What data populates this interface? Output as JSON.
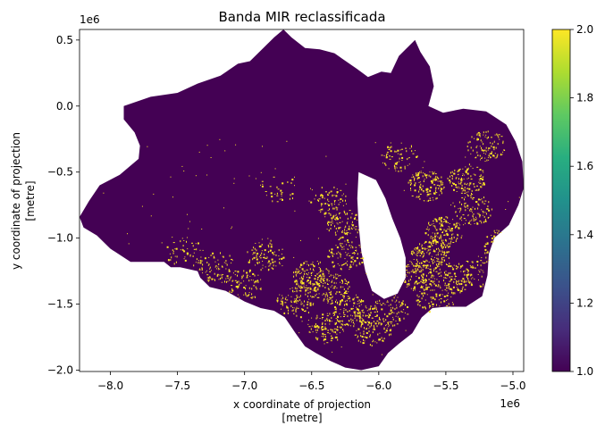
{
  "chart_data": {
    "type": "heatmap",
    "title": "Banda MIR reclassificada",
    "xlabel_line1": "x coordinate of projection",
    "xlabel_line2": "[metre]",
    "ylabel_line1": "y coordinate of projection",
    "ylabel_line2": "[metre]",
    "x_offset_label": "1e6",
    "y_offset_label": "1e6",
    "xlim": [
      -8.23,
      -4.92
    ],
    "ylim": [
      -2.01,
      0.58
    ],
    "xticks": [
      -8.0,
      -7.5,
      -7.0,
      -6.5,
      -6.0,
      -5.5,
      -5.0
    ],
    "xtick_labels": [
      "−8.0",
      "−7.5",
      "−7.0",
      "−6.5",
      "−6.0",
      "−5.5",
      "−5.0"
    ],
    "yticks": [
      0.5,
      0.0,
      -0.5,
      -1.0,
      -1.5,
      -2.0
    ],
    "ytick_labels": [
      "0.5",
      "0.0",
      "−0.5",
      "−1.0",
      "−1.5",
      "−2.0"
    ],
    "colorbar": {
      "min": 1.0,
      "max": 2.0,
      "ticks": [
        1.0,
        1.2,
        1.4,
        1.6,
        1.8,
        2.0
      ],
      "tick_labels": [
        "1.0",
        "1.2",
        "1.4",
        "1.6",
        "1.8",
        "2.0"
      ],
      "colormap": "viridis"
    },
    "classes": [
      {
        "value": 1,
        "color": "#440154"
      },
      {
        "value": 2,
        "color": "#fde725"
      }
    ],
    "region_outline": [
      [
        -8.23,
        -0.84
      ],
      [
        -8.16,
        -0.72
      ],
      [
        -8.08,
        -0.6
      ],
      [
        -7.93,
        -0.52
      ],
      [
        -7.86,
        -0.46
      ],
      [
        -7.79,
        -0.4
      ],
      [
        -7.78,
        -0.3
      ],
      [
        -7.82,
        -0.2
      ],
      [
        -7.9,
        -0.1
      ],
      [
        -7.9,
        0.0
      ],
      [
        -7.7,
        0.07
      ],
      [
        -7.5,
        0.1
      ],
      [
        -7.35,
        0.17
      ],
      [
        -7.18,
        0.23
      ],
      [
        -7.05,
        0.32
      ],
      [
        -6.96,
        0.34
      ],
      [
        -6.85,
        0.45
      ],
      [
        -6.78,
        0.52
      ],
      [
        -6.71,
        0.58
      ],
      [
        -6.65,
        0.52
      ],
      [
        -6.55,
        0.44
      ],
      [
        -6.44,
        0.43
      ],
      [
        -6.33,
        0.4
      ],
      [
        -6.26,
        0.35
      ],
      [
        -6.16,
        0.28
      ],
      [
        -6.08,
        0.22
      ],
      [
        -5.98,
        0.26
      ],
      [
        -5.91,
        0.25
      ],
      [
        -5.85,
        0.38
      ],
      [
        -5.73,
        0.5
      ],
      [
        -5.69,
        0.41
      ],
      [
        -5.62,
        0.3
      ],
      [
        -5.59,
        0.15
      ],
      [
        -5.63,
        0.0
      ],
      [
        -5.52,
        -0.05
      ],
      [
        -5.37,
        -0.02
      ],
      [
        -5.2,
        -0.04
      ],
      [
        -5.05,
        -0.14
      ],
      [
        -4.98,
        -0.27
      ],
      [
        -4.93,
        -0.42
      ],
      [
        -4.92,
        -0.62
      ],
      [
        -4.96,
        -0.75
      ],
      [
        -5.03,
        -0.9
      ],
      [
        -5.14,
        -1.0
      ],
      [
        -5.18,
        -1.12
      ],
      [
        -5.19,
        -1.28
      ],
      [
        -5.23,
        -1.44
      ],
      [
        -5.35,
        -1.52
      ],
      [
        -5.5,
        -1.52
      ],
      [
        -5.6,
        -1.53
      ],
      [
        -5.68,
        -1.6
      ],
      [
        -5.75,
        -1.72
      ],
      [
        -5.85,
        -1.8
      ],
      [
        -5.93,
        -1.87
      ],
      [
        -6.0,
        -1.97
      ],
      [
        -6.13,
        -2.0
      ],
      [
        -6.25,
        -1.98
      ],
      [
        -6.36,
        -1.93
      ],
      [
        -6.47,
        -1.87
      ],
      [
        -6.55,
        -1.82
      ],
      [
        -6.62,
        -1.72
      ],
      [
        -6.7,
        -1.6
      ],
      [
        -6.78,
        -1.55
      ],
      [
        -6.88,
        -1.53
      ],
      [
        -7.0,
        -1.48
      ],
      [
        -7.14,
        -1.4
      ],
      [
        -7.26,
        -1.37
      ],
      [
        -7.33,
        -1.3
      ],
      [
        -7.35,
        -1.25
      ],
      [
        -7.48,
        -1.22
      ],
      [
        -7.55,
        -1.22
      ],
      [
        -7.6,
        -1.18
      ],
      [
        -7.72,
        -1.18
      ],
      [
        -7.85,
        -1.18
      ],
      [
        -8.0,
        -1.08
      ],
      [
        -8.1,
        -0.98
      ],
      [
        -8.2,
        -0.92
      ]
    ],
    "notch_outline": [
      [
        -6.15,
        -0.5
      ],
      [
        -6.02,
        -0.56
      ],
      [
        -5.95,
        -0.7
      ],
      [
        -5.9,
        -0.85
      ],
      [
        -5.84,
        -1.0
      ],
      [
        -5.8,
        -1.15
      ],
      [
        -5.8,
        -1.3
      ],
      [
        -5.86,
        -1.42
      ],
      [
        -5.96,
        -1.46
      ],
      [
        -6.05,
        -1.4
      ],
      [
        -6.1,
        -1.25
      ],
      [
        -6.13,
        -1.1
      ],
      [
        -6.15,
        -0.9
      ],
      [
        -6.16,
        -0.7
      ]
    ],
    "class2_clusters": [
      {
        "x": -5.62,
        "y": -1.12,
        "density": 0.9
      },
      {
        "x": -5.52,
        "y": -0.95,
        "density": 0.85
      },
      {
        "x": -5.65,
        "y": -0.6,
        "density": 0.8
      },
      {
        "x": -5.35,
        "y": -0.55,
        "density": 0.7
      },
      {
        "x": -5.2,
        "y": -0.3,
        "density": 0.6
      },
      {
        "x": -5.3,
        "y": -0.78,
        "density": 0.6
      },
      {
        "x": -5.72,
        "y": -1.28,
        "density": 0.75
      },
      {
        "x": -5.45,
        "y": -1.3,
        "density": 0.65
      },
      {
        "x": -5.58,
        "y": -1.45,
        "density": 0.5
      },
      {
        "x": -6.5,
        "y": -1.28,
        "density": 0.8
      },
      {
        "x": -6.35,
        "y": -1.38,
        "density": 0.7
      },
      {
        "x": -6.62,
        "y": -1.48,
        "density": 0.6
      },
      {
        "x": -6.2,
        "y": -1.55,
        "density": 0.75
      },
      {
        "x": -6.4,
        "y": -1.68,
        "density": 0.6
      },
      {
        "x": -6.05,
        "y": -1.7,
        "density": 0.55
      },
      {
        "x": -7.0,
        "y": -1.35,
        "density": 0.5
      },
      {
        "x": -7.2,
        "y": -1.22,
        "density": 0.45
      },
      {
        "x": -6.85,
        "y": -1.12,
        "density": 0.5
      },
      {
        "x": -6.25,
        "y": -0.9,
        "density": 0.55
      },
      {
        "x": -6.38,
        "y": -0.72,
        "density": 0.45
      },
      {
        "x": -6.25,
        "y": -1.12,
        "density": 0.6
      },
      {
        "x": -5.92,
        "y": -1.55,
        "density": 0.5
      },
      {
        "x": -7.45,
        "y": -1.1,
        "density": 0.3
      },
      {
        "x": -6.75,
        "y": -0.62,
        "density": 0.2
      },
      {
        "x": -5.85,
        "y": -0.38,
        "density": 0.4
      },
      {
        "x": -5.1,
        "y": -1.05,
        "density": 0.5
      },
      {
        "x": -5.25,
        "y": -1.25,
        "density": 0.4
      }
    ]
  }
}
